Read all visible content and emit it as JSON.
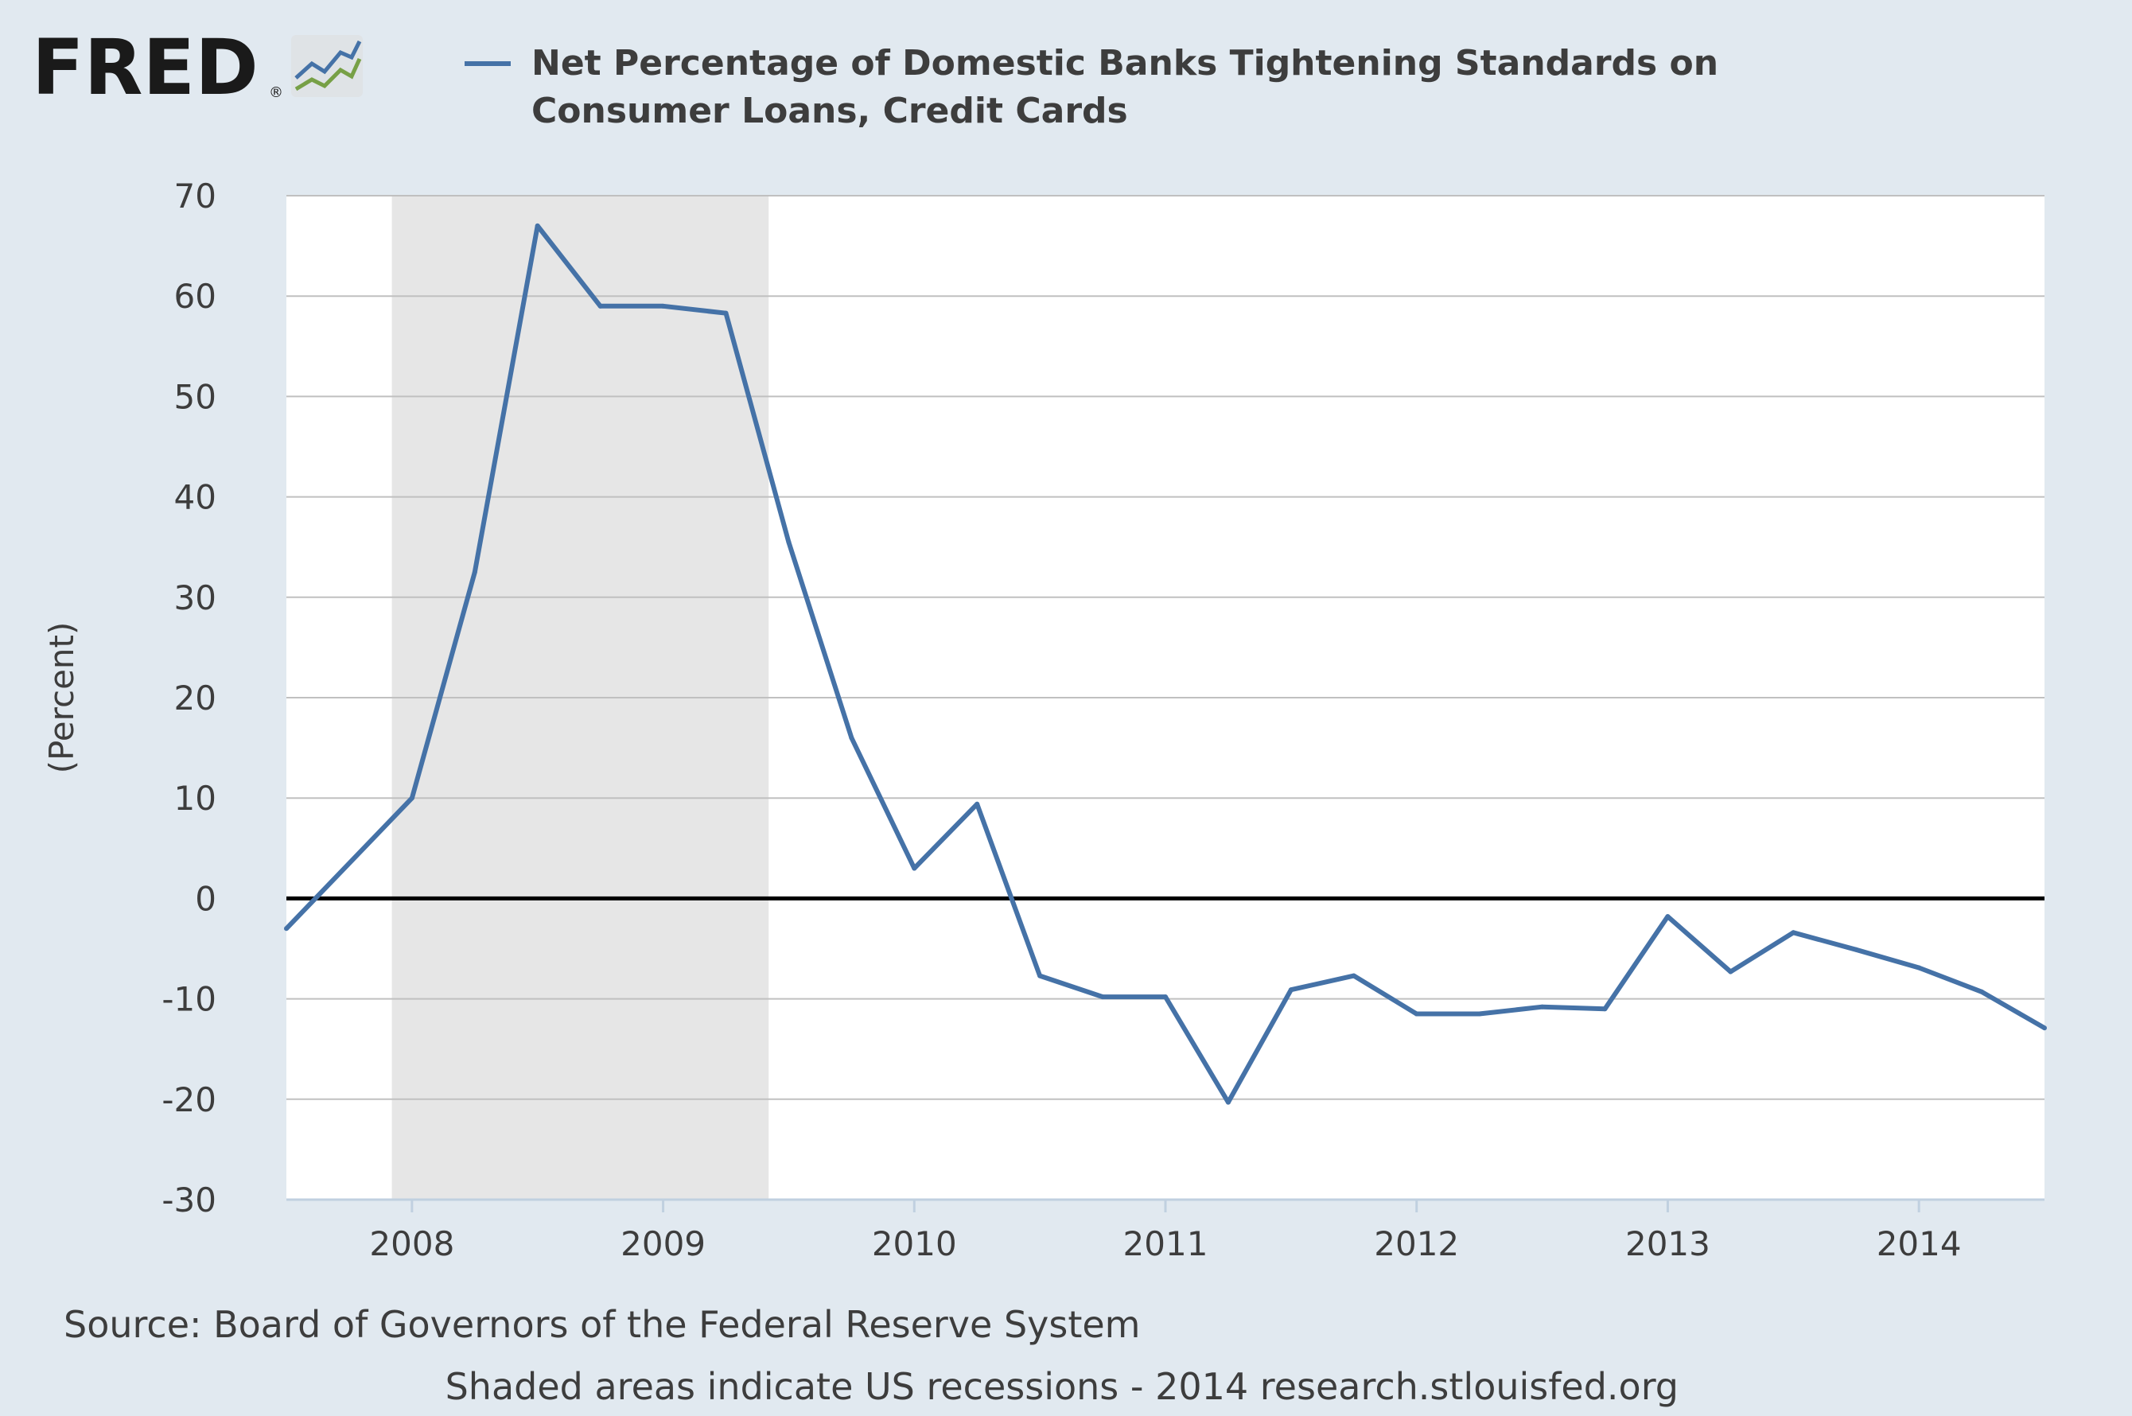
{
  "branding": {
    "logo_text": "FRED",
    "registered_mark": "®",
    "logo_icon": "fred-sparkline-icon"
  },
  "colors": {
    "background": "#e1e9f0",
    "plot_background": "#ffffff",
    "series": "#4572a7",
    "recession": "#e6e6e6",
    "grid": "#c0c0c0",
    "zero_line": "#000000"
  },
  "chart_data": {
    "type": "line",
    "title": "",
    "legend": [
      "Net Percentage of Domestic Banks Tightening Standards on",
      "Consumer Loans, Credit Cards"
    ],
    "legend_placement": "top",
    "xlabel": "",
    "ylabel": "(Percent)",
    "ylim": [
      -30,
      70
    ],
    "xlim": [
      2007.5,
      2014.5
    ],
    "yticks": [
      70,
      60,
      50,
      40,
      30,
      20,
      10,
      0,
      -10,
      -20,
      -30
    ],
    "xticks": [
      "2008",
      "2009",
      "2010",
      "2011",
      "2012",
      "2013",
      "2014"
    ],
    "grid": true,
    "recession_shading": [
      [
        2007.92,
        2009.42
      ]
    ],
    "series": [
      {
        "name": "Net Percentage of Domestic Banks Tightening Standards on Consumer Loans, Credit Cards",
        "x": [
          2007.5,
          2008.0,
          2008.25,
          2008.5,
          2008.75,
          2009.0,
          2009.25,
          2009.5,
          2009.75,
          2010.0,
          2010.25,
          2010.5,
          2010.75,
          2011.0,
          2011.25,
          2011.5,
          2011.75,
          2012.0,
          2012.25,
          2012.5,
          2012.75,
          2013.0,
          2013.25,
          2013.5,
          2013.75,
          2014.0,
          2014.25,
          2014.5
        ],
        "y": [
          -3.0,
          10.0,
          32.5,
          67.0,
          59.0,
          59.0,
          58.3,
          35.5,
          16.0,
          3.0,
          9.4,
          -7.7,
          -9.8,
          -9.8,
          -20.3,
          -9.1,
          -7.7,
          -11.5,
          -11.5,
          -10.8,
          -11.0,
          -1.8,
          -7.3,
          -3.4,
          -5.1,
          -6.9,
          -9.3,
          -12.9
        ]
      }
    ]
  },
  "footer": {
    "source": "Source: Board of Governors of the Federal Reserve System",
    "note": "Shaded areas indicate US recessions - 2014 research.stlouisfed.org"
  }
}
